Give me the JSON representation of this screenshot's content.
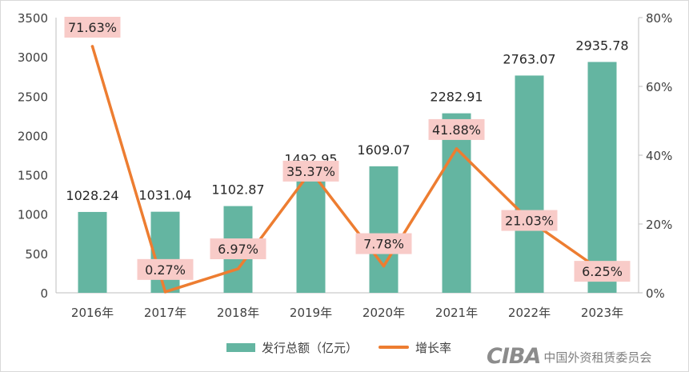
{
  "chart_data": {
    "type": "bar+line",
    "categories": [
      "2016年",
      "2017年",
      "2018年",
      "2019年",
      "2020年",
      "2021年",
      "2022年",
      "2023年"
    ],
    "series": [
      {
        "name": "发行总额（亿元）",
        "type": "bar",
        "axis": "left",
        "values": [
          1028.24,
          1031.04,
          1102.87,
          1492.95,
          1609.07,
          2282.91,
          2763.07,
          2935.78
        ],
        "labels": [
          "1028.24",
          "1031.04",
          "1102.87",
          "1492.95",
          "1609.07",
          "2282.91",
          "2763.07",
          "2935.78"
        ],
        "color": "#64b5a1"
      },
      {
        "name": "增长率",
        "type": "line",
        "axis": "right",
        "values": [
          71.63,
          0.27,
          6.97,
          35.37,
          7.78,
          41.88,
          21.03,
          6.25
        ],
        "labels": [
          "71.63%",
          "0.27%",
          "6.97%",
          "35.37%",
          "7.78%",
          "41.88%",
          "21.03%",
          "6.25%"
        ],
        "color": "#ed7d31",
        "label_bg": "#f8cbc8"
      }
    ],
    "y_left": {
      "range": [
        0,
        3500
      ],
      "ticks": [
        "0",
        "500",
        "1000",
        "1500",
        "2000",
        "2500",
        "3000",
        "3500"
      ]
    },
    "y_right": {
      "range": [
        0,
        80
      ],
      "ticks": [
        "0%",
        "20%",
        "40%",
        "60%",
        "80%"
      ]
    },
    "grid": false,
    "legend": {
      "position": "bottom"
    }
  },
  "legend": {
    "bar_label": "发行总额（亿元）",
    "line_label": "增长率"
  },
  "brand": {
    "logo": "CIBA",
    "name": "中国外资租赁委员会"
  }
}
